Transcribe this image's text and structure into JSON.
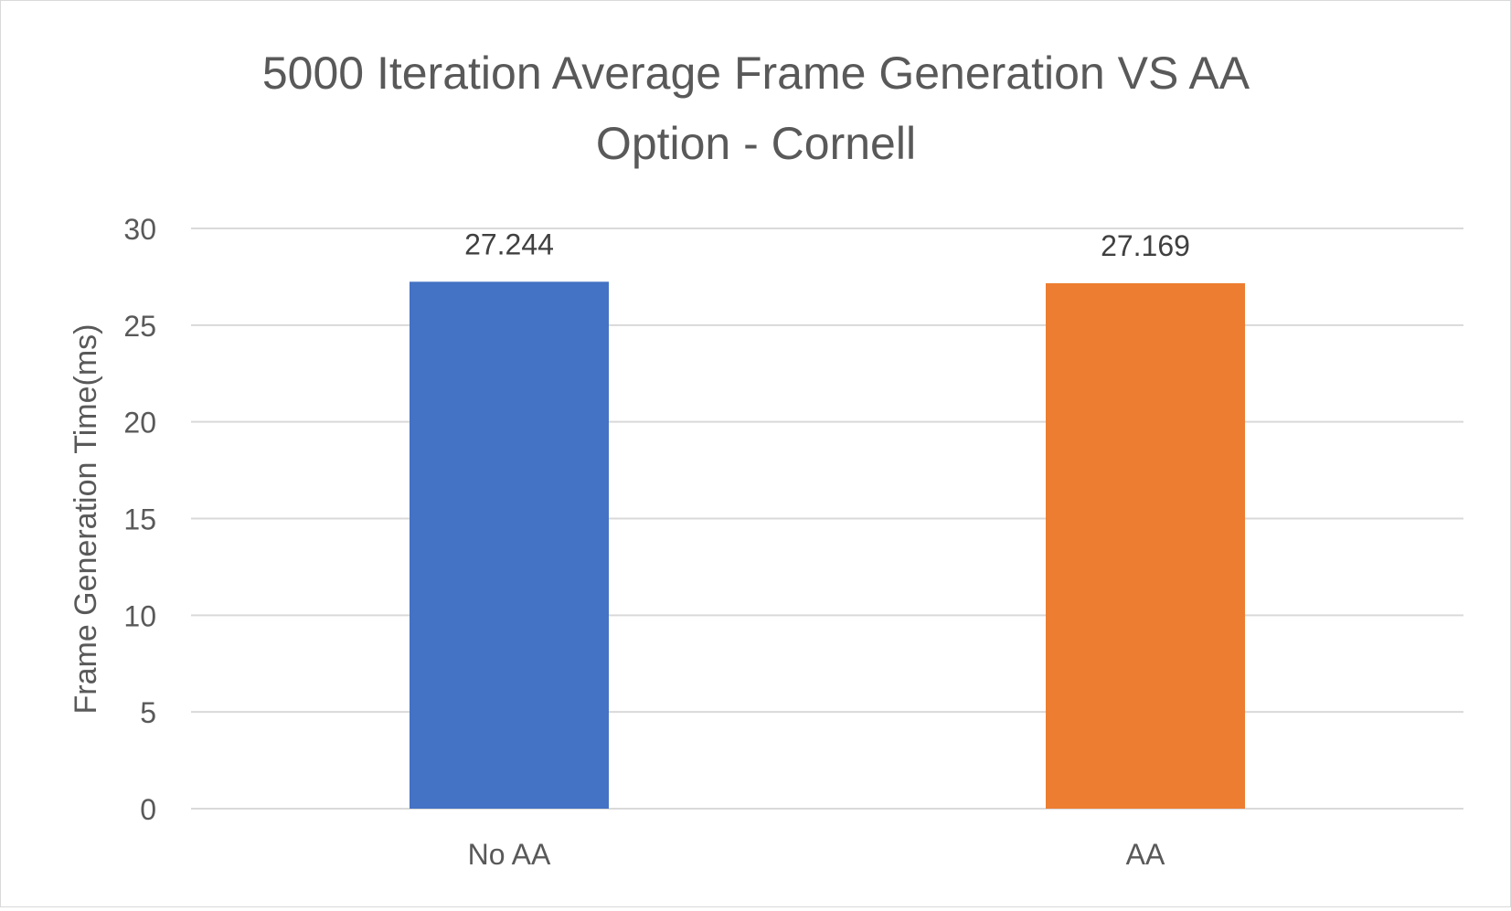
{
  "chart_data": {
    "type": "bar",
    "title": "5000 Iteration Average Frame Generation VS AA Option - Cornell",
    "title_lines": [
      "5000 Iteration Average Frame Generation VS AA",
      "Option - Cornell"
    ],
    "xlabel": "",
    "ylabel": "Frame Generation Time(ms)",
    "categories": [
      "No AA",
      "AA"
    ],
    "values": [
      27.244,
      27.169
    ],
    "data_labels": [
      "27.244",
      "27.169"
    ],
    "bar_colors": [
      "#4472C4",
      "#ED7D31"
    ],
    "ylim": [
      0,
      30
    ],
    "yticks": [
      0,
      5,
      10,
      15,
      20,
      25,
      30
    ],
    "grid": true,
    "legend": "none"
  }
}
